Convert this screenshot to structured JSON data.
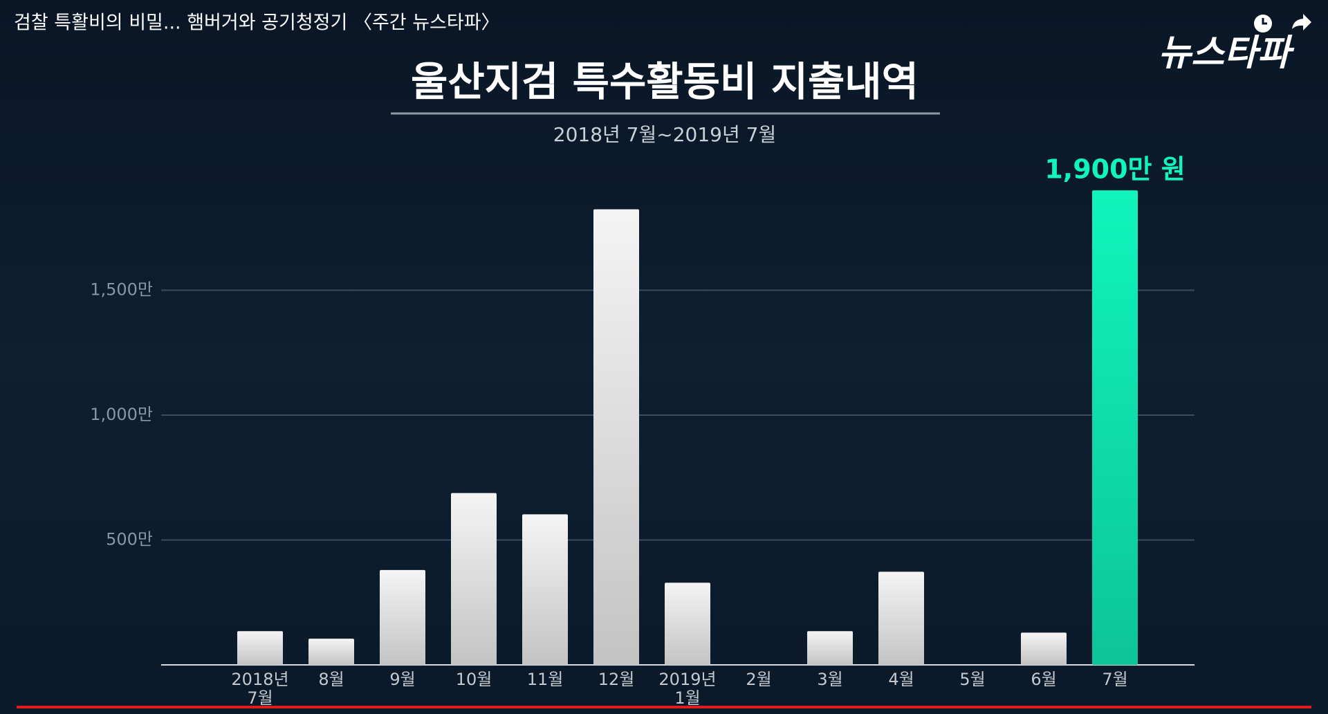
{
  "video_title": "검찰 특활비의 비밀... 햄버거와 공기청정기 〈주간 뉴스타파〉",
  "logo": "뉴스타파",
  "chart_data": {
    "type": "bar",
    "title": "울산지검 특수활동비 지출내역",
    "subtitle": "2018년 7월~2019년 7월",
    "categories": [
      "2018년\n7월",
      "8월",
      "9월",
      "10월",
      "11월",
      "12월",
      "2019년\n1월",
      "2월",
      "3월",
      "4월",
      "5월",
      "6월",
      "7월"
    ],
    "values": [
      135,
      105,
      380,
      688,
      603,
      1824,
      329,
      0,
      135,
      373,
      0,
      129,
      1900
    ],
    "value_labels": [
      null,
      null,
      null,
      null,
      null,
      null,
      null,
      null,
      null,
      null,
      null,
      null,
      "1,900만 원"
    ],
    "colors": [
      "#f4f4f4",
      "#f4f4f4",
      "#f4f4f4",
      "#f4f4f4",
      "#f4f4f4",
      "#f4f4f4",
      "#f4f4f4",
      "#f4f4f4",
      "#f4f4f4",
      "#f4f4f4",
      "#f4f4f4",
      "#f4f4f4",
      "#10f5bd"
    ],
    "ylim": [
      0,
      2000
    ],
    "yticks": [
      {
        "value": 500,
        "label": "500만"
      },
      {
        "value": 1000,
        "label": "1,000만"
      },
      {
        "value": 1500,
        "label": "1,500만"
      }
    ],
    "grid": true
  }
}
